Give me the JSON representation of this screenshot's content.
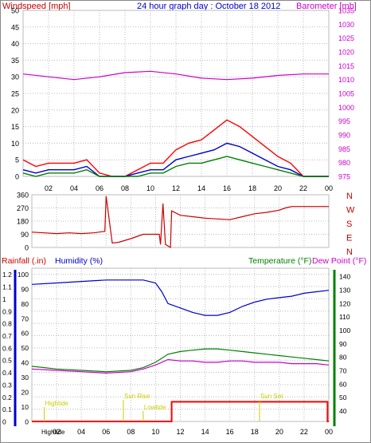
{
  "header": {
    "title": "24 hour graph day : October 18 2012",
    "left_label": "Windspeed [mph]",
    "right_label": "Barometer [mb]"
  },
  "colors": {
    "wind": "#ff0000",
    "gust_avg": "#0000cc",
    "wind_low": "#008000",
    "barometer": "#cc00cc",
    "direction": "#cc0000",
    "humidity": "#0000cc",
    "temperature": "#008000",
    "dewpoint": "#cc00cc",
    "rainfall": "#ff0000",
    "tide": "#cccc00",
    "grid": "#bbbbbb",
    "axis_text": "#000000"
  },
  "x_ticks": [
    "02",
    "04",
    "06",
    "08",
    "10",
    "12",
    "14",
    "16",
    "18",
    "20",
    "22",
    "00"
  ],
  "bottom_x_ticks": [
    "02",
    "04",
    "06",
    "08",
    "10",
    "12",
    "14",
    "16",
    "18",
    "20",
    "22",
    "00"
  ],
  "direction_letters": [
    "N",
    "W",
    "S",
    "E",
    "N"
  ],
  "bottom": {
    "rainfall_label": "Rainfall (.in)",
    "humidity_label": "Humidity (%)",
    "temperature_label": "Temperature (°F)",
    "dewpoint_label": "Dew Point (°F)"
  },
  "tide_events": [
    {
      "label": "Hightide",
      "hour": 1.0,
      "row": "upper"
    },
    {
      "label": "Sun Rise",
      "hour": 7.4,
      "row": "upper2"
    },
    {
      "label": "Lowtide",
      "hour": 9.0,
      "row": "mid"
    },
    {
      "label": "Sun Set",
      "hour": 18.4,
      "row": "upper2"
    },
    {
      "label": "Hightide",
      "hour": 1.0,
      "row": "bottom"
    }
  ],
  "chart_data": [
    {
      "type": "line",
      "name_chart": "wind-barometer",
      "x_range_hours": [
        0,
        24
      ],
      "y_left": {
        "ticks": [
          0,
          5,
          10,
          15,
          20,
          25,
          30,
          35,
          40,
          45,
          50
        ],
        "range": [
          0,
          50
        ]
      },
      "y_right": {
        "ticks": [
          975,
          980,
          985,
          990,
          995,
          1000,
          1005,
          1010,
          1015,
          1020,
          1025,
          1030,
          1035
        ],
        "range": [
          975,
          1035
        ]
      },
      "series": [
        {
          "key": "barometer",
          "axis": "right",
          "x": [
            0,
            2,
            4,
            6,
            8,
            10,
            12,
            14,
            16,
            18,
            20,
            22,
            24
          ],
          "y": [
            1012,
            1011,
            1010,
            1011,
            1012.5,
            1013,
            1012,
            1010.5,
            1010,
            1010.5,
            1011.5,
            1012,
            1012
          ]
        },
        {
          "key": "wind",
          "axis": "left",
          "x": [
            0,
            1,
            2,
            3,
            4,
            5,
            6,
            7,
            8,
            9,
            10,
            11,
            12,
            13,
            14,
            15,
            16,
            17,
            18,
            19,
            20,
            21,
            22,
            23,
            24
          ],
          "y": [
            5,
            3,
            4,
            4,
            4,
            5,
            1,
            0,
            0,
            2,
            4,
            4,
            8,
            10,
            11,
            14,
            17,
            15,
            12,
            9,
            6,
            4,
            0,
            0,
            0
          ]
        },
        {
          "key": "gust_avg",
          "axis": "left",
          "x": [
            0,
            1,
            2,
            3,
            4,
            5,
            6,
            7,
            8,
            9,
            10,
            11,
            12,
            13,
            14,
            15,
            16,
            17,
            18,
            19,
            20,
            21,
            22,
            23,
            24
          ],
          "y": [
            2,
            1,
            2,
            2,
            2,
            3,
            0,
            0,
            0,
            1,
            2,
            2,
            5,
            6,
            7,
            8,
            10,
            9,
            7,
            5,
            3,
            2,
            0,
            0,
            0
          ]
        },
        {
          "key": "wind_low",
          "axis": "left",
          "x": [
            0,
            1,
            2,
            3,
            4,
            5,
            6,
            7,
            8,
            9,
            10,
            11,
            12,
            13,
            14,
            15,
            16,
            17,
            18,
            19,
            20,
            21,
            22,
            23,
            24
          ],
          "y": [
            1,
            0,
            1,
            1,
            1,
            2,
            0,
            0,
            0,
            0,
            1,
            1,
            3,
            4,
            4,
            5,
            6,
            5,
            4,
            3,
            2,
            1,
            0,
            0,
            0
          ]
        }
      ]
    },
    {
      "type": "line",
      "name_chart": "wind-direction",
      "x_range_hours": [
        0,
        24
      ],
      "y_left": {
        "ticks": [
          0,
          90,
          180,
          270,
          360
        ],
        "range": [
          0,
          360
        ]
      },
      "series": [
        {
          "key": "direction",
          "axis": "left",
          "x": [
            0.0,
            1.0,
            2.0,
            3.0,
            4.0,
            5.0,
            5.9,
            6.0,
            6.5,
            7.0,
            8.0,
            9.0,
            10.3,
            10.4,
            10.6,
            10.8,
            11.2,
            11.3,
            12.0,
            13.0,
            14.0,
            15.0,
            16.0,
            17.0,
            18.0,
            19.0,
            20.0,
            20.5,
            21.0,
            22.0,
            23.0,
            24.0
          ],
          "y": [
            105,
            100,
            95,
            100,
            95,
            100,
            110,
            350,
            30,
            35,
            60,
            90,
            90,
            20,
            300,
            20,
            0,
            250,
            220,
            210,
            200,
            195,
            190,
            210,
            230,
            240,
            255,
            270,
            280,
            280,
            280,
            280
          ]
        }
      ]
    },
    {
      "type": "line",
      "name_chart": "humidity-temperature",
      "x_range_hours": [
        0,
        24
      ],
      "y_left_rain": {
        "ticks": [
          0,
          0.1,
          0.2,
          0.3,
          0.4,
          0.5,
          0.6,
          0.7,
          0.8,
          0.9,
          1,
          1.1,
          1.2
        ],
        "range": [
          0,
          1.25
        ]
      },
      "y_left_humidity": {
        "ticks": [
          0,
          10,
          20,
          30,
          40,
          50,
          60,
          70,
          80,
          90,
          100
        ],
        "range": [
          0,
          104
        ]
      },
      "y_right": {
        "ticks": [
          40,
          50,
          60,
          70,
          80,
          90,
          100,
          110,
          120,
          130,
          140
        ],
        "range": [
          32,
          146
        ]
      },
      "series": [
        {
          "key": "humidity",
          "axis": "humidity",
          "x": [
            0,
            2,
            4,
            6,
            8,
            9,
            10,
            10.5,
            11,
            12,
            13,
            14,
            15,
            16,
            17,
            18,
            19,
            20,
            21,
            22,
            23,
            24
          ],
          "y": [
            93,
            94,
            95,
            96,
            96,
            96,
            94,
            88,
            80,
            77,
            74,
            72,
            72,
            74,
            78,
            81,
            83,
            84,
            85,
            87,
            88,
            89
          ]
        },
        {
          "key": "temperature",
          "axis": "right",
          "x": [
            0,
            2,
            4,
            6,
            8,
            9,
            10,
            11,
            12,
            13,
            14,
            15,
            16,
            17,
            18,
            19,
            20,
            21,
            22,
            23,
            24
          ],
          "y": [
            73,
            71,
            70,
            69,
            70,
            72,
            76,
            82,
            84,
            85,
            86,
            86,
            85,
            84,
            83,
            82,
            81,
            80,
            79,
            78,
            77
          ]
        },
        {
          "key": "dewpoint",
          "axis": "right",
          "x": [
            0,
            2,
            4,
            6,
            8,
            9,
            10,
            11,
            12,
            13,
            14,
            15,
            16,
            17,
            18,
            19,
            20,
            21,
            22,
            23,
            24
          ],
          "y": [
            71,
            70,
            69,
            68,
            69,
            71,
            74,
            78,
            77,
            77,
            76,
            76,
            77,
            77,
            76,
            76,
            76,
            75,
            75,
            75,
            74
          ]
        },
        {
          "key": "rainfall",
          "axis": "rain",
          "x": [
            0,
            11.3,
            11.3,
            23.9,
            23.9,
            24
          ],
          "y": [
            0,
            0,
            0.16,
            0.16,
            0,
            0
          ]
        }
      ]
    }
  ]
}
